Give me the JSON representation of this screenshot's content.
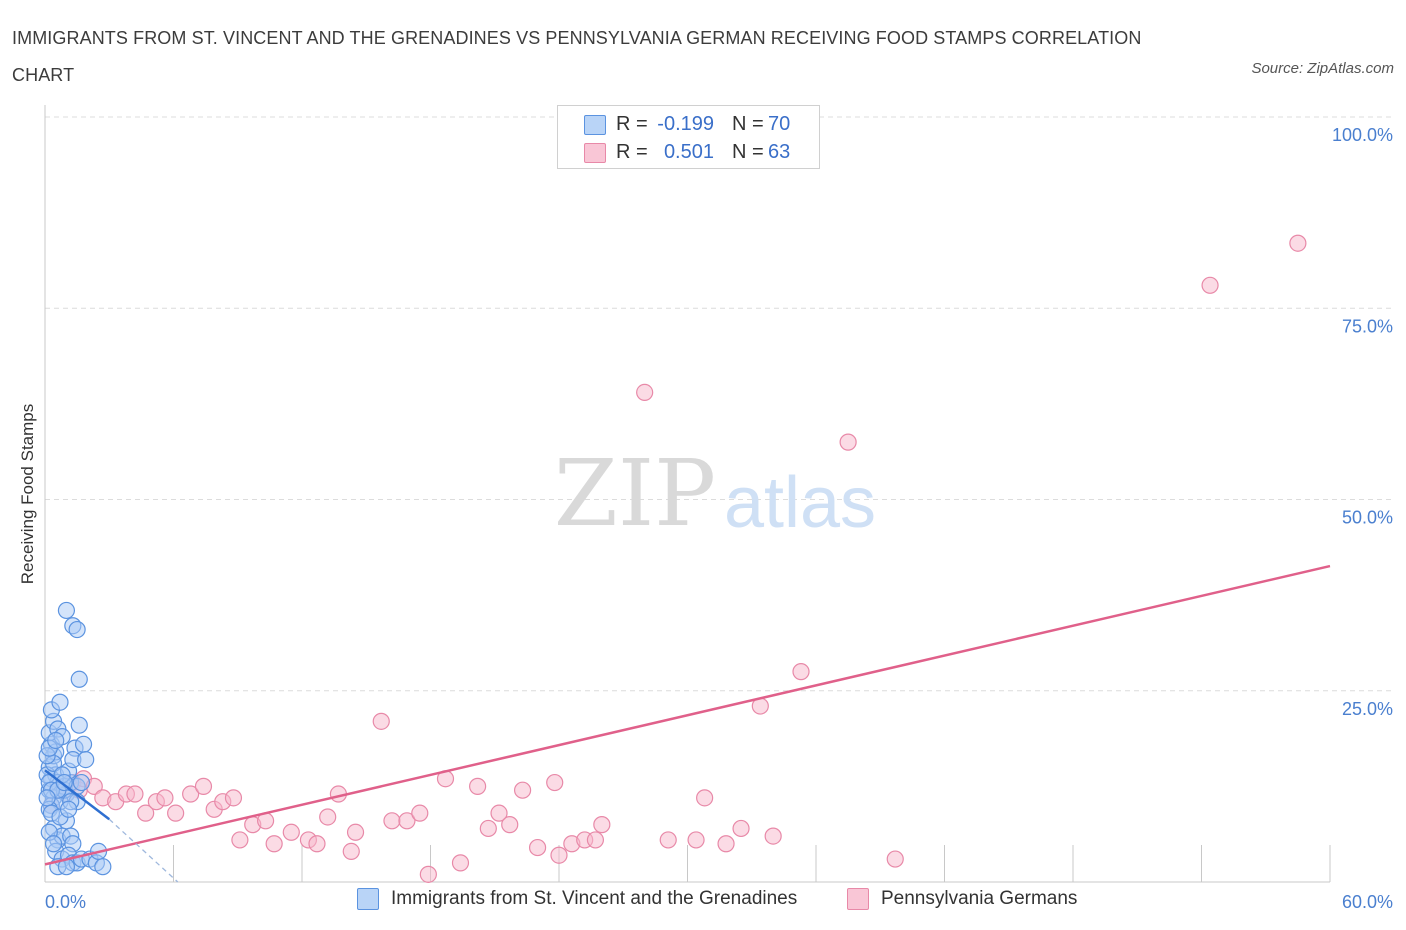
{
  "title": "IMMIGRANTS FROM ST. VINCENT AND THE GRENADINES VS PENNSYLVANIA GERMAN RECEIVING FOOD STAMPS CORRELATION CHART",
  "source": "Source: ZipAtlas.com",
  "watermark": {
    "zip": "ZIP",
    "atlas": "atlas"
  },
  "colors": {
    "blue_fill": "#a9c9f5",
    "blue_stroke": "#5b93e0",
    "blue_line": "#2e6fd1",
    "pink_fill": "#f7b8cc",
    "pink_stroke": "#e889a8",
    "pink_line": "#e0608a",
    "accent_text": "#4a7fcf",
    "grid": "#dcdcdc"
  },
  "legend_top": {
    "rows": [
      {
        "r_label": "R =",
        "r_value": "-0.199",
        "n_label": "N =",
        "n_value": "70"
      },
      {
        "r_label": "R =",
        "r_value": "0.501",
        "n_label": "N =",
        "n_value": "63"
      }
    ]
  },
  "chart_data": {
    "type": "scatter",
    "title": "IMMIGRANTS FROM ST. VINCENT AND THE GRENADINES VS PENNSYLVANIA GERMAN RECEIVING FOOD STAMPS CORRELATION CHART",
    "xlabel": "",
    "ylabel": "Receiving Food Stamps",
    "xlim": [
      0,
      60
    ],
    "ylim": [
      0,
      100
    ],
    "x_tick_labels": [
      "0.0%",
      "60.0%"
    ],
    "y_tick_labels": [
      "100.0%",
      "75.0%",
      "50.0%",
      "25.0%"
    ],
    "y_ticks": [
      100,
      75,
      50,
      25
    ],
    "grid": true,
    "legend_position": "bottom",
    "series": [
      {
        "name": "Immigrants from St. Vincent and the Grenadines",
        "color": "blue",
        "R": -0.199,
        "N": 70,
        "trend": {
          "x": [
            0,
            3
          ],
          "y": [
            14.6,
            8.2
          ]
        },
        "trend_dashed_extension": {
          "x": [
            3,
            6.2
          ],
          "y": [
            8.2,
            0
          ]
        },
        "points": [
          [
            0.2,
            12.0
          ],
          [
            0.3,
            13.5
          ],
          [
            0.2,
            15.0
          ],
          [
            0.4,
            16.5
          ],
          [
            0.3,
            18.0
          ],
          [
            0.5,
            17.0
          ],
          [
            0.2,
            19.5
          ],
          [
            0.4,
            21.0
          ],
          [
            0.3,
            22.5
          ],
          [
            0.6,
            20.0
          ],
          [
            0.7,
            23.5
          ],
          [
            0.8,
            19.0
          ],
          [
            0.5,
            14.0
          ],
          [
            0.6,
            13.0
          ],
          [
            0.9,
            12.5
          ],
          [
            1.0,
            11.5
          ],
          [
            0.4,
            11.0
          ],
          [
            0.3,
            10.0
          ],
          [
            0.7,
            10.5
          ],
          [
            0.2,
            9.5
          ],
          [
            0.9,
            12.0
          ],
          [
            1.2,
            13.0
          ],
          [
            1.5,
            12.5
          ],
          [
            1.1,
            14.5
          ],
          [
            1.4,
            17.5
          ],
          [
            1.8,
            18.0
          ],
          [
            1.3,
            16.0
          ],
          [
            1.6,
            20.5
          ],
          [
            1.9,
            16.0
          ],
          [
            1.7,
            13.0
          ],
          [
            1.5,
            10.5
          ],
          [
            1.2,
            10.5
          ],
          [
            1.0,
            35.5
          ],
          [
            1.3,
            33.5
          ],
          [
            1.5,
            33.0
          ],
          [
            1.6,
            26.5
          ],
          [
            0.4,
            7.0
          ],
          [
            0.6,
            5.5
          ],
          [
            0.8,
            6.0
          ],
          [
            1.0,
            8.0
          ],
          [
            1.2,
            6.0
          ],
          [
            1.3,
            5.0
          ],
          [
            0.5,
            4.0
          ],
          [
            0.8,
            3.0
          ],
          [
            1.1,
            3.5
          ],
          [
            1.3,
            2.5
          ],
          [
            1.5,
            2.5
          ],
          [
            1.7,
            3.0
          ],
          [
            0.6,
            2.0
          ],
          [
            1.0,
            2.0
          ],
          [
            2.1,
            3.0
          ],
          [
            2.4,
            2.5
          ],
          [
            2.5,
            4.0
          ],
          [
            2.7,
            2.0
          ],
          [
            0.1,
            14.0
          ],
          [
            0.2,
            13.0
          ],
          [
            0.3,
            12.0
          ],
          [
            0.4,
            15.5
          ],
          [
            0.1,
            16.5
          ],
          [
            0.2,
            17.5
          ],
          [
            0.5,
            18.5
          ],
          [
            0.6,
            12.0
          ],
          [
            0.8,
            14.0
          ],
          [
            0.9,
            13.0
          ],
          [
            0.1,
            11.0
          ],
          [
            0.3,
            9.0
          ],
          [
            0.7,
            8.5
          ],
          [
            1.1,
            9.5
          ],
          [
            0.2,
            6.5
          ],
          [
            0.4,
            5.0
          ]
        ]
      },
      {
        "name": "Pennsylvania Germans",
        "color": "pink",
        "R": 0.501,
        "N": 63,
        "trend": {
          "x": [
            0,
            60
          ],
          "y": [
            2.3,
            41.3
          ]
        },
        "points": [
          [
            0.3,
            10.0
          ],
          [
            0.6,
            12.0
          ],
          [
            1.0,
            11.5
          ],
          [
            1.3,
            13.0
          ],
          [
            1.6,
            12.0
          ],
          [
            1.8,
            13.5
          ],
          [
            2.3,
            12.5
          ],
          [
            2.7,
            11.0
          ],
          [
            3.3,
            10.5
          ],
          [
            3.8,
            11.5
          ],
          [
            4.2,
            11.5
          ],
          [
            4.7,
            9.0
          ],
          [
            5.2,
            10.5
          ],
          [
            5.6,
            11.0
          ],
          [
            6.1,
            9.0
          ],
          [
            6.8,
            11.5
          ],
          [
            7.4,
            12.5
          ],
          [
            7.9,
            9.5
          ],
          [
            8.3,
            10.5
          ],
          [
            8.8,
            11.0
          ],
          [
            9.1,
            5.5
          ],
          [
            9.7,
            7.5
          ],
          [
            10.3,
            8.0
          ],
          [
            10.7,
            5.0
          ],
          [
            11.5,
            6.5
          ],
          [
            12.3,
            5.5
          ],
          [
            12.7,
            5.0
          ],
          [
            13.2,
            8.5
          ],
          [
            13.7,
            11.5
          ],
          [
            14.3,
            4.0
          ],
          [
            14.5,
            6.5
          ],
          [
            15.7,
            21.0
          ],
          [
            16.2,
            8.0
          ],
          [
            16.9,
            8.0
          ],
          [
            17.5,
            9.0
          ],
          [
            17.9,
            1.0
          ],
          [
            18.7,
            13.5
          ],
          [
            19.4,
            2.5
          ],
          [
            20.2,
            12.5
          ],
          [
            20.7,
            7.0
          ],
          [
            21.2,
            9.0
          ],
          [
            21.7,
            7.5
          ],
          [
            22.3,
            12.0
          ],
          [
            23.0,
            4.5
          ],
          [
            23.8,
            13.0
          ],
          [
            24.0,
            3.5
          ],
          [
            24.6,
            5.0
          ],
          [
            25.2,
            5.5
          ],
          [
            25.7,
            5.5
          ],
          [
            26.0,
            7.5
          ],
          [
            28.0,
            64.0
          ],
          [
            29.1,
            5.5
          ],
          [
            30.4,
            5.5
          ],
          [
            30.8,
            11.0
          ],
          [
            31.8,
            5.0
          ],
          [
            32.5,
            7.0
          ],
          [
            33.4,
            23.0
          ],
          [
            34.0,
            6.0
          ],
          [
            35.3,
            27.5
          ],
          [
            37.5,
            57.5
          ],
          [
            39.7,
            3.0
          ],
          [
            54.4,
            78.0
          ],
          [
            58.5,
            83.5
          ]
        ]
      }
    ]
  },
  "legend_bottom": {
    "items": [
      {
        "label": "Immigrants from St. Vincent and the Grenadines"
      },
      {
        "label": "Pennsylvania Germans"
      }
    ]
  }
}
